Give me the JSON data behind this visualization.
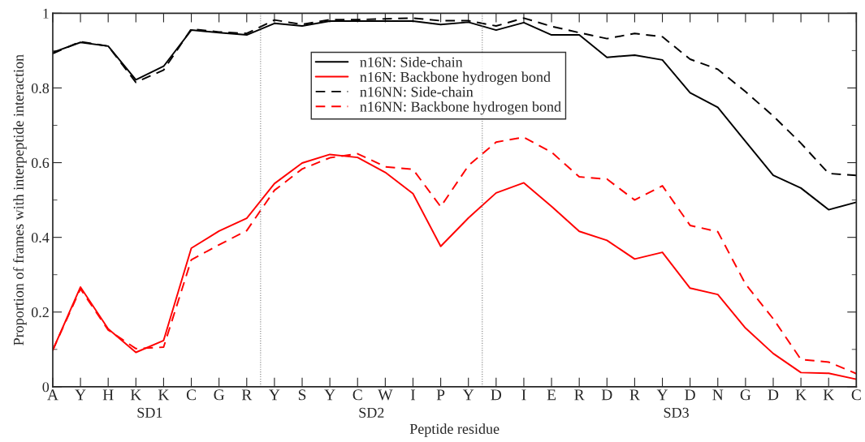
{
  "chart_data": {
    "type": "line",
    "xlabel": "Peptide residue",
    "ylabel": "Proportion of frames with interpeptide interaction",
    "categories": [
      "A",
      "Y",
      "H",
      "K",
      "K",
      "C",
      "G",
      "R",
      "Y",
      "S",
      "Y",
      "C",
      "W",
      "I",
      "P",
      "Y",
      "D",
      "I",
      "E",
      "R",
      "D",
      "R",
      "Y",
      "D",
      "N",
      "G",
      "D",
      "K",
      "K",
      "C"
    ],
    "series": [
      {
        "name": "n16N: Side-chain",
        "color": "#000000",
        "line_style": "solid",
        "values": [
          0.895,
          0.922,
          0.912,
          0.822,
          0.858,
          0.955,
          0.948,
          0.942,
          0.973,
          0.966,
          0.979,
          0.979,
          0.979,
          0.979,
          0.97,
          0.976,
          0.955,
          0.975,
          0.942,
          0.942,
          0.882,
          0.888,
          0.875,
          0.787,
          0.748,
          0.657,
          0.566,
          0.532,
          0.474,
          0.494
        ]
      },
      {
        "name": "n16N: Backbone hydrogen bond",
        "color": "#ff0000",
        "line_style": "solid",
        "values": [
          0.098,
          0.267,
          0.155,
          0.092,
          0.124,
          0.371,
          0.417,
          0.451,
          0.544,
          0.599,
          0.622,
          0.614,
          0.574,
          0.517,
          0.376,
          0.452,
          0.519,
          0.546,
          0.483,
          0.416,
          0.392,
          0.342,
          0.36,
          0.264,
          0.247,
          0.157,
          0.089,
          0.038,
          0.036,
          0.02
        ]
      },
      {
        "name": "n16NN: Side-chain",
        "color": "#000000",
        "line_style": "dashed",
        "values": [
          0.892,
          0.924,
          0.912,
          0.815,
          0.848,
          0.958,
          0.95,
          0.946,
          0.982,
          0.97,
          0.983,
          0.983,
          0.985,
          0.987,
          0.98,
          0.98,
          0.966,
          0.987,
          0.965,
          0.948,
          0.932,
          0.946,
          0.937,
          0.877,
          0.85,
          0.79,
          0.725,
          0.652,
          0.571,
          0.566
        ]
      },
      {
        "name": "n16NN: Backbone hydrogen bond",
        "color": "#ff0000",
        "line_style": "dashed",
        "values": [
          0.098,
          0.262,
          0.152,
          0.102,
          0.106,
          0.34,
          0.38,
          0.418,
          0.526,
          0.583,
          0.613,
          0.624,
          0.589,
          0.582,
          0.482,
          0.592,
          0.655,
          0.668,
          0.628,
          0.562,
          0.556,
          0.5,
          0.538,
          0.432,
          0.415,
          0.275,
          0.182,
          0.073,
          0.066,
          0.035
        ]
      }
    ],
    "ylim": [
      0,
      1
    ],
    "yticks": [
      0,
      0.2,
      0.4,
      0.6,
      0.8,
      1
    ],
    "annotations": [
      "SD1",
      "SD2",
      "SD3"
    ],
    "grid": false,
    "legend": "top",
    "marker": "none"
  }
}
